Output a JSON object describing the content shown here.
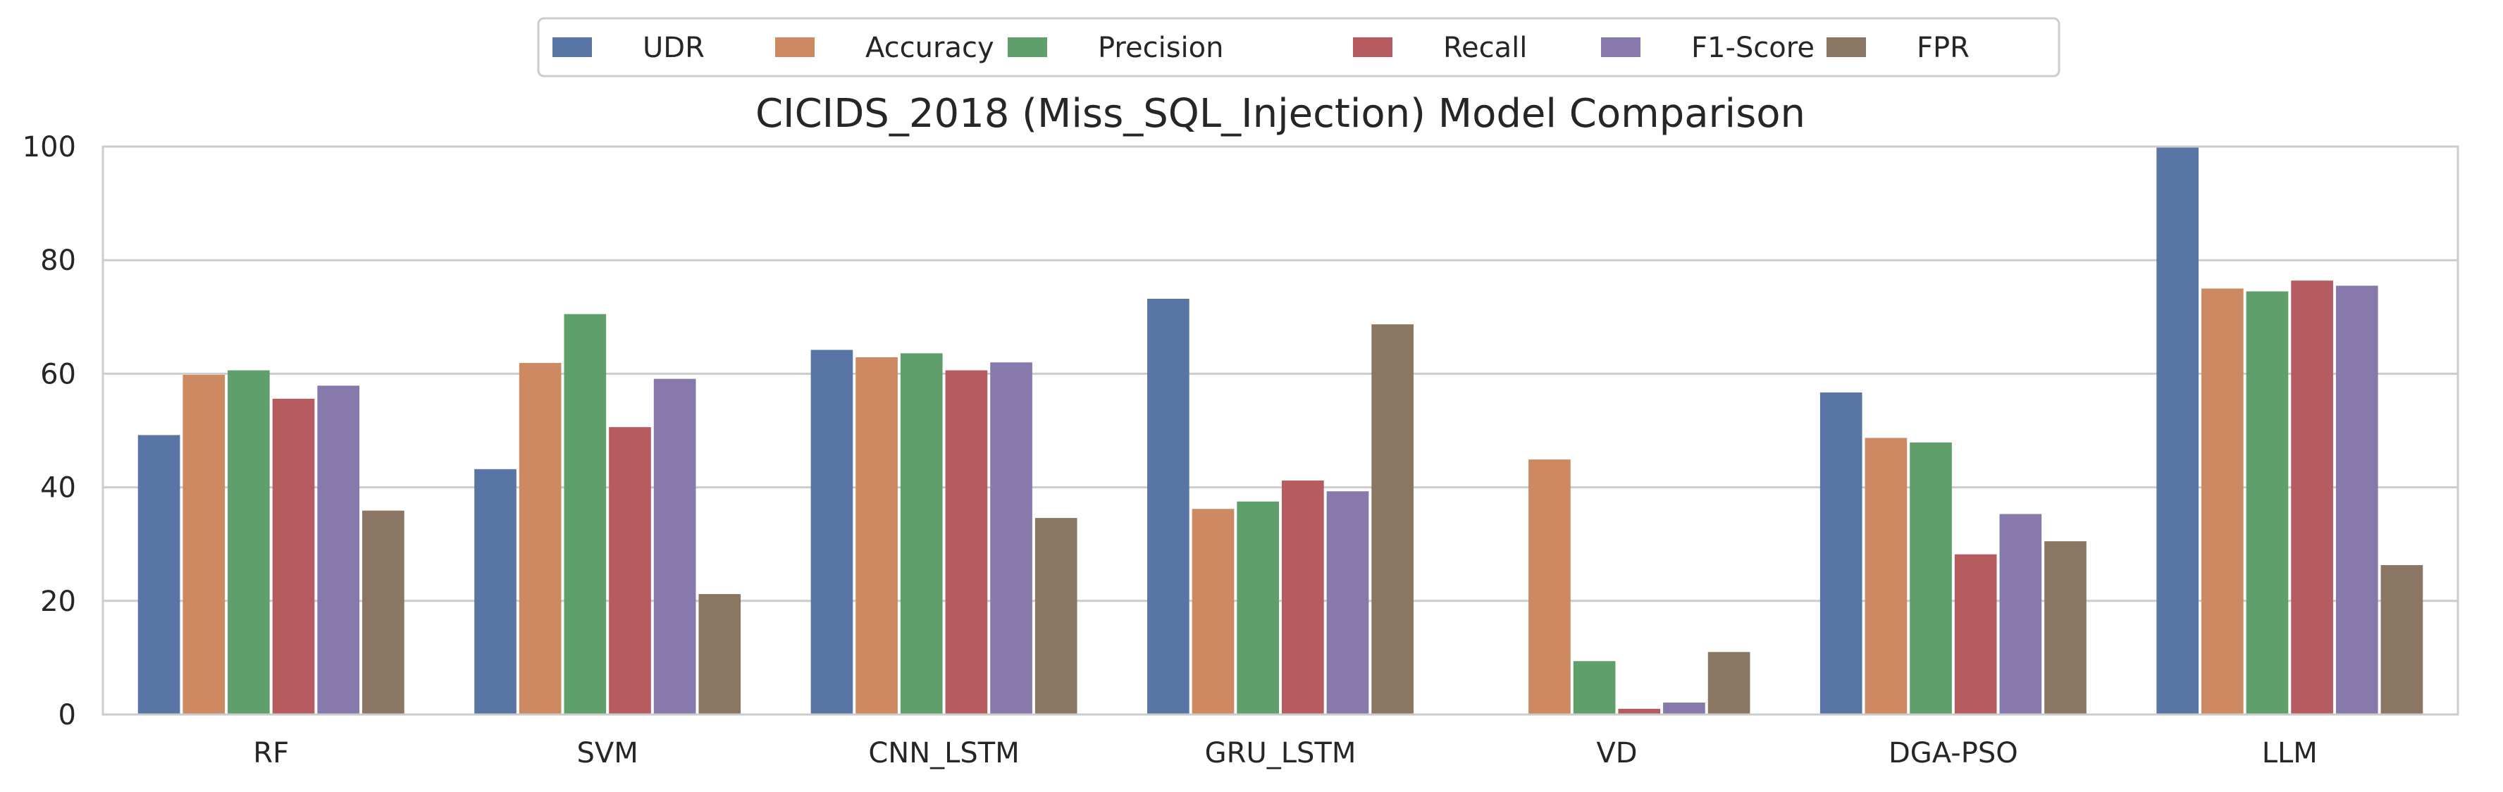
{
  "chart_data": {
    "type": "bar",
    "title": "CICIDS_2018 (Miss_SQL_Injection) Model Comparison",
    "xlabel": "",
    "ylabel": "",
    "categories": [
      "RF",
      "SVM",
      "CNN_LSTM",
      "GRU_LSTM",
      "VD",
      "DGA-PSO",
      "LLM"
    ],
    "ylim": [
      0,
      100
    ],
    "yticks": [
      "0",
      "20",
      "40",
      "60",
      "80",
      "100"
    ],
    "grid": true,
    "legend_position": "top-center",
    "series": [
      {
        "name": "UDR",
        "color": "#5875a6",
        "values": [
          49.2,
          43.2,
          64.2,
          73.2,
          0,
          56.7,
          100
        ]
      },
      {
        "name": "Accuracy",
        "color": "#cd8962",
        "values": [
          59.8,
          61.9,
          62.9,
          36.2,
          44.9,
          48.7,
          75.0
        ]
      },
      {
        "name": "Precision",
        "color": "#5e9f6b",
        "values": [
          60.6,
          70.5,
          63.6,
          37.5,
          9.4,
          47.9,
          74.5
        ]
      },
      {
        "name": "Recall",
        "color": "#b65b60",
        "values": [
          55.6,
          50.6,
          60.6,
          41.2,
          1.0,
          28.2,
          76.4
        ]
      },
      {
        "name": "F1-Score",
        "color": "#8779ab",
        "values": [
          57.9,
          59.1,
          62.0,
          39.3,
          2.1,
          35.3,
          75.5
        ]
      },
      {
        "name": "FPR",
        "color": "#8a7662",
        "values": [
          35.9,
          21.2,
          34.6,
          68.7,
          11.0,
          30.5,
          26.3
        ]
      }
    ]
  }
}
